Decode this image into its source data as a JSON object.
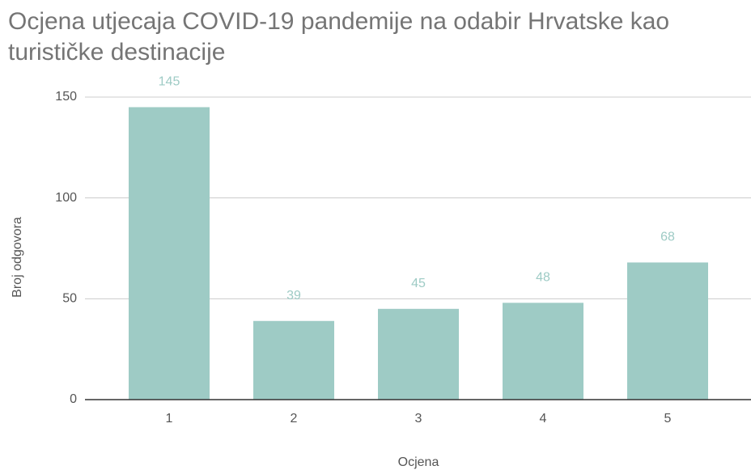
{
  "chart_data": {
    "type": "bar",
    "title": "Ocjena utjecaja COVID-19 pandemije na odabir Hrvatske kao turističke destinacije",
    "x_label": "Ocjena",
    "y_label": "Broj odgovora",
    "categories": [
      "1",
      "2",
      "3",
      "4",
      "5"
    ],
    "values": [
      145,
      39,
      45,
      48,
      68
    ],
    "color": "#9ecbc5",
    "ylim": [
      0,
      150
    ],
    "yticks": [
      0,
      50,
      100,
      150
    ],
    "grid": true
  }
}
